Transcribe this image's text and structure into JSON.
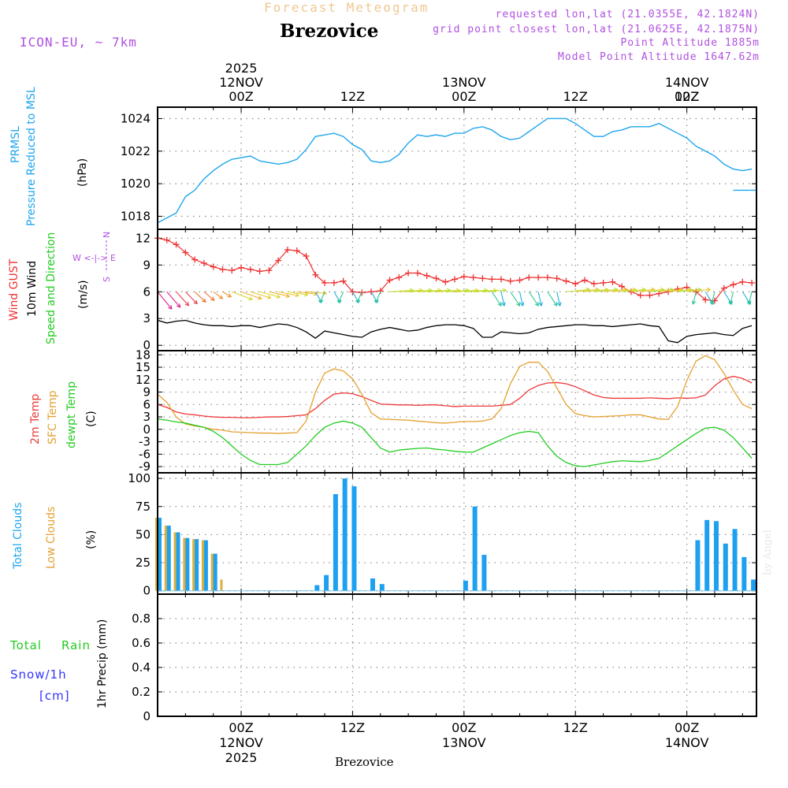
{
  "header": {
    "title": "Forecast Meteogram",
    "station": "Brezovice",
    "model": "ICON-EU, ~ 7km",
    "requested": "requested lon,lat (21.0355E, 42.1824N)",
    "gridpoint": "grid point closest lon,lat (21.0625E, 42.1875N)",
    "point_altitude": "Point Altitude 1885m",
    "model_altitude": "Model Point Altitude 1647.62m"
  },
  "footer": {
    "station": "Brezovice",
    "credit": "by Angel"
  },
  "time_axis": {
    "ticks": [
      "00Z",
      "12Z",
      "00Z",
      "12Z",
      "00Z",
      "12Z"
    ],
    "top_dates": [
      "12NOV",
      "13NOV",
      "14NOV"
    ],
    "top_year": "2025",
    "bottom_dates": [
      "12NOV",
      "13NOV",
      "14NOV"
    ],
    "bottom_year": "2025"
  },
  "panel_labels": {
    "pressure": {
      "line1": "PRMSL",
      "line2": "Pressure Reduced to MSL",
      "unit": "(hPa)"
    },
    "wind": {
      "gust": "Wind GUST",
      "wind10": "10m Wind",
      "speed": "Speed and Direction",
      "unit": "(m/s)",
      "compass_n": "N",
      "compass_s": "S",
      "compass_ew": "W <-|-> E"
    },
    "temp": {
      "t2m": "2m Temp",
      "sfc": "SFC Temp",
      "dew": "dewpt Temp",
      "unit": "(C)"
    },
    "clouds": {
      "total": "Total Clouds",
      "low": "Low Clouds",
      "unit": "(%)"
    },
    "precip": {
      "total": "Total",
      "rain": "Rain",
      "snow": "Snow/1h",
      "cm": "[cm]",
      "label": "1hr Precip (mm)"
    }
  },
  "colors": {
    "pressure": "#1ea6ee",
    "gust": "#ee3030",
    "wind10": "#000000",
    "t2m": "#ee3838",
    "sfc": "#e4a030",
    "dew": "#22cc22",
    "total_clouds": "#1ea0f0",
    "low_clouds": "#dcb040",
    "rain": "#22cc22",
    "snow": "#3333ff",
    "compass": "#b050e0"
  },
  "chart_data": [
    {
      "type": "line",
      "name": "pressure",
      "title": "PRMSL Pressure Reduced to MSL",
      "ylabel": "(hPa)",
      "x_unit": "hours since 2025-11-11 15Z",
      "xlim": [
        0,
        64.5
      ],
      "ylim": [
        1017.2,
        1024.7
      ],
      "yticks": [
        1018,
        1020,
        1022,
        1024
      ],
      "series": [
        {
          "name": "PRMSL",
          "x": [
            0,
            1,
            2,
            3,
            4,
            5,
            6,
            7,
            8,
            9,
            10,
            11,
            12,
            13,
            14,
            15,
            16,
            17,
            18,
            19,
            20,
            21,
            22,
            23,
            24,
            25,
            26,
            27,
            28,
            29,
            30,
            31,
            32,
            33,
            34,
            35,
            36,
            37,
            38,
            39,
            40,
            41,
            42,
            43,
            44,
            45,
            46,
            47,
            48,
            49,
            50,
            51,
            52,
            53,
            54,
            55,
            56,
            57,
            58,
            59,
            60,
            61,
            62,
            63,
            64
          ],
          "values": [
            1017.6,
            1017.9,
            1018.2,
            1019.2,
            1019.6,
            1020.3,
            1020.8,
            1021.2,
            1021.5,
            1021.6,
            1021.7,
            1021.4,
            1021.3,
            1021.2,
            1021.3,
            1021.5,
            1022.1,
            1022.9,
            1023.0,
            1023.1,
            1022.9,
            1022.4,
            1022.1,
            1021.4,
            1021.3,
            1021.4,
            1021.8,
            1022.5,
            1023.0,
            1022.9,
            1023.0,
            1022.9,
            1023.1,
            1023.1,
            1023.4,
            1023.5,
            1023.3,
            1022.9,
            1022.7,
            1022.8,
            1023.2,
            1023.6,
            1024.0,
            1024.0,
            1024.0,
            1023.7,
            1023.3,
            1022.9,
            1022.9,
            1023.2,
            1023.3,
            1023.5,
            1023.5,
            1023.5,
            1023.7,
            1023.4,
            1023.1,
            1022.8,
            1022.3,
            1022.0,
            1021.7,
            1021.2,
            1020.9,
            1020.8,
            1020.9
          ]
        },
        {
          "name": "PRMSL-tail",
          "x": [
            62,
            63,
            64.5
          ],
          "values": [
            1019.6,
            1019.6,
            1019.6
          ]
        }
      ]
    },
    {
      "type": "line",
      "name": "wind",
      "title": "Wind GUST / 10m Wind",
      "ylabel": "(m/s)",
      "x_unit": "hours since 2025-11-11 15Z",
      "xlim": [
        0,
        64.5
      ],
      "ylim": [
        -0.6,
        13
      ],
      "yticks": [
        0,
        3,
        6,
        9,
        12
      ],
      "series": [
        {
          "name": "Wind GUST",
          "marker": "+",
          "x": [
            0,
            1,
            2,
            3,
            4,
            5,
            6,
            7,
            8,
            9,
            10,
            11,
            12,
            13,
            14,
            15,
            16,
            17,
            18,
            19,
            20,
            21,
            22,
            23,
            24,
            25,
            26,
            27,
            28,
            29,
            30,
            31,
            32,
            33,
            34,
            35,
            36,
            37,
            38,
            39,
            40,
            41,
            42,
            43,
            44,
            45,
            46,
            47,
            48,
            49,
            50,
            51,
            52,
            53,
            54,
            55,
            56,
            57,
            58,
            59,
            60,
            61,
            62,
            63,
            64
          ],
          "values": [
            12.0,
            11.8,
            11.3,
            10.4,
            9.6,
            9.2,
            8.8,
            8.5,
            8.4,
            8.7,
            8.5,
            8.3,
            8.4,
            9.5,
            10.7,
            10.6,
            10.0,
            7.9,
            7.0,
            7.0,
            7.2,
            6.0,
            5.9,
            6.0,
            6.1,
            7.3,
            7.6,
            8.1,
            8.1,
            7.8,
            7.5,
            7.1,
            7.4,
            7.7,
            7.6,
            7.5,
            7.4,
            7.4,
            7.2,
            7.3,
            7.6,
            7.6,
            7.6,
            7.5,
            7.2,
            6.9,
            7.3,
            6.9,
            7.0,
            7.1,
            6.6,
            6.0,
            5.6,
            5.6,
            5.8,
            6.0,
            6.3,
            6.5,
            6.0,
            5.1,
            5.0,
            6.4,
            6.8,
            7.1,
            7.0
          ]
        },
        {
          "name": "10m Wind",
          "x": [
            0,
            1,
            2,
            3,
            4,
            5,
            6,
            7,
            8,
            9,
            10,
            11,
            12,
            13,
            14,
            15,
            16,
            17,
            18,
            19,
            20,
            21,
            22,
            23,
            24,
            25,
            26,
            27,
            28,
            29,
            30,
            31,
            32,
            33,
            34,
            35,
            36,
            37,
            38,
            39,
            40,
            41,
            42,
            43,
            44,
            45,
            46,
            47,
            48,
            49,
            50,
            51,
            52,
            53,
            54,
            55,
            56,
            57,
            58,
            59,
            60,
            61,
            62,
            63,
            64
          ],
          "values": [
            2.8,
            2.5,
            2.7,
            2.8,
            2.5,
            2.3,
            2.2,
            2.2,
            2.1,
            2.2,
            2.2,
            2.0,
            2.2,
            2.4,
            2.3,
            2.0,
            1.5,
            0.8,
            1.6,
            1.4,
            1.2,
            1.0,
            0.9,
            1.5,
            1.8,
            2.0,
            1.8,
            1.6,
            1.7,
            2.0,
            2.2,
            2.3,
            2.3,
            2.2,
            1.9,
            0.9,
            0.9,
            1.5,
            1.4,
            1.3,
            1.4,
            1.8,
            2.0,
            2.1,
            2.2,
            2.3,
            2.3,
            2.2,
            2.2,
            2.1,
            2.2,
            2.3,
            2.4,
            2.2,
            2.1,
            0.5,
            0.3,
            1.0,
            1.2,
            1.3,
            1.4,
            1.2,
            1.1,
            1.9,
            2.2
          ]
        }
      ]
    },
    {
      "type": "line",
      "name": "temperature",
      "title": "2m / SFC / dewpoint Temp",
      "ylabel": "(C)",
      "x_unit": "hours since 2025-11-11 15Z",
      "xlim": [
        0,
        64.5
      ],
      "ylim": [
        -10.5,
        19
      ],
      "yticks": [
        -9,
        -6,
        -3,
        0,
        3,
        6,
        9,
        12,
        15,
        18
      ],
      "series": [
        {
          "name": "2m Temp",
          "x": [
            0,
            1,
            2,
            3,
            4,
            5,
            6,
            7,
            8,
            9,
            10,
            11,
            12,
            13,
            14,
            15,
            16,
            17,
            18,
            19,
            20,
            21,
            22,
            23,
            24,
            25,
            26,
            27,
            28,
            29,
            30,
            31,
            32,
            33,
            34,
            35,
            36,
            37,
            38,
            39,
            40,
            41,
            42,
            43,
            44,
            45,
            46,
            47,
            48,
            49,
            50,
            51,
            52,
            53,
            54,
            55,
            56,
            57,
            58,
            59,
            60,
            61,
            62,
            63,
            64
          ],
          "values": [
            6.0,
            5.3,
            4.2,
            3.7,
            3.5,
            3.2,
            3.0,
            2.9,
            2.9,
            2.8,
            2.8,
            2.9,
            3.0,
            3.0,
            3.1,
            3.3,
            3.5,
            5.0,
            7.0,
            8.5,
            8.8,
            8.6,
            7.9,
            7.0,
            6.1,
            6.0,
            5.9,
            5.9,
            5.8,
            5.9,
            5.9,
            5.7,
            5.5,
            5.6,
            5.6,
            5.6,
            5.6,
            5.8,
            6.0,
            7.5,
            9.5,
            10.6,
            11.2,
            11.3,
            11.0,
            10.3,
            9.3,
            8.3,
            7.7,
            7.5,
            7.5,
            7.5,
            7.5,
            7.6,
            7.5,
            7.4,
            7.6,
            7.5,
            7.6,
            8.3,
            10.5,
            12.2,
            12.8,
            12.3,
            11.2
          ]
        },
        {
          "name": "SFC Temp",
          "x": [
            0,
            1,
            2,
            3,
            4,
            5,
            6,
            7,
            8,
            9,
            10,
            11,
            12,
            13,
            14,
            15,
            16,
            17,
            18,
            19,
            20,
            21,
            22,
            23,
            24,
            25,
            26,
            27,
            28,
            29,
            30,
            31,
            32,
            33,
            34,
            35,
            36,
            37,
            38,
            39,
            40,
            41,
            42,
            43,
            44,
            45,
            46,
            47,
            48,
            49,
            50,
            51,
            52,
            53,
            54,
            55,
            56,
            57,
            58,
            59,
            60,
            61,
            62,
            63,
            64
          ],
          "values": [
            8.5,
            6.5,
            3.0,
            1.3,
            0.8,
            0.5,
            0.0,
            -0.2,
            -0.6,
            -0.7,
            -0.8,
            -0.9,
            -0.9,
            -1.0,
            -0.9,
            -0.8,
            2.0,
            9.0,
            13.6,
            14.6,
            14.1,
            12.2,
            8.5,
            4.0,
            2.5,
            2.4,
            2.3,
            2.2,
            2.0,
            1.8,
            1.6,
            1.5,
            1.7,
            1.9,
            1.9,
            2.0,
            2.5,
            5.0,
            11.0,
            15.2,
            16.2,
            16.2,
            14.0,
            10.0,
            6.0,
            3.8,
            3.3,
            3.0,
            3.1,
            3.2,
            3.3,
            3.5,
            3.5,
            3.0,
            2.5,
            2.4,
            5.5,
            11.8,
            16.5,
            17.8,
            16.8,
            13.5,
            9.5,
            6.0,
            5.0
          ]
        },
        {
          "name": "dewpt Temp",
          "x": [
            0,
            1,
            2,
            3,
            4,
            5,
            6,
            7,
            8,
            9,
            10,
            11,
            12,
            13,
            14,
            15,
            16,
            17,
            18,
            19,
            20,
            21,
            22,
            23,
            24,
            25,
            26,
            27,
            28,
            29,
            30,
            31,
            32,
            33,
            34,
            35,
            36,
            37,
            38,
            39,
            40,
            41,
            42,
            43,
            44,
            45,
            46,
            47,
            48,
            49,
            50,
            51,
            52,
            53,
            54,
            55,
            56,
            57,
            58,
            59,
            60,
            61,
            62,
            63,
            64
          ],
          "values": [
            2.5,
            2.2,
            1.8,
            1.5,
            1.0,
            0.5,
            -0.5,
            -2.0,
            -4.0,
            -6.0,
            -7.5,
            -8.5,
            -8.5,
            -8.5,
            -8.0,
            -6.0,
            -4.0,
            -1.5,
            0.5,
            1.5,
            2.0,
            1.5,
            0.5,
            -2.0,
            -4.5,
            -5.5,
            -5.0,
            -4.8,
            -4.6,
            -4.5,
            -4.8,
            -5.0,
            -5.3,
            -5.5,
            -5.5,
            -4.5,
            -3.5,
            -2.5,
            -1.5,
            -0.8,
            -0.5,
            -0.8,
            -4.0,
            -6.5,
            -8.0,
            -8.8,
            -9.0,
            -8.6,
            -8.2,
            -7.8,
            -7.6,
            -7.7,
            -7.8,
            -7.5,
            -7.0,
            -5.5,
            -4.0,
            -2.5,
            -1.0,
            0.3,
            0.5,
            -0.2,
            -2.0,
            -4.5,
            -7.0
          ]
        }
      ]
    },
    {
      "type": "bar",
      "name": "clouds",
      "title": "Total / Low Clouds",
      "ylabel": "(%)",
      "x_unit": "hours since 2025-11-11 15Z",
      "xlim": [
        0,
        64.5
      ],
      "ylim": [
        -3,
        105
      ],
      "yticks": [
        0,
        25,
        50,
        75,
        100
      ],
      "series": [
        {
          "name": "Total Clouds",
          "x": [
            0,
            1,
            2,
            3,
            4,
            5,
            6,
            17,
            18,
            19,
            20,
            21,
            23,
            24,
            33,
            34,
            35,
            58,
            59,
            60,
            61,
            62,
            63,
            64
          ],
          "values": [
            65,
            58,
            52,
            47,
            46,
            45,
            33,
            5,
            14,
            86,
            100,
            93,
            11,
            6,
            9,
            75,
            32,
            45,
            63,
            62,
            42,
            55,
            30,
            10
          ]
        },
        {
          "name": "Low Clouds",
          "x": [
            0,
            1,
            2,
            3,
            4,
            5,
            6,
            7
          ],
          "values": [
            65,
            58,
            52,
            47,
            46,
            45,
            33,
            10
          ]
        }
      ]
    },
    {
      "type": "line",
      "name": "precip",
      "title": "1hr Precip (mm)",
      "ylabel": "1hr Precip (mm)",
      "x_unit": "hours since 2025-11-11 15Z",
      "xlim": [
        0,
        64.5
      ],
      "ylim": [
        0,
        1.0
      ],
      "yticks": [
        0,
        0.2,
        0.4,
        0.6,
        0.8
      ],
      "series": [
        {
          "name": "Total Rain",
          "x": [
            0,
            64
          ],
          "values": [
            0,
            0
          ]
        },
        {
          "name": "Snow/1h",
          "x": [
            0,
            64
          ],
          "values": [
            0,
            0
          ]
        }
      ]
    }
  ]
}
